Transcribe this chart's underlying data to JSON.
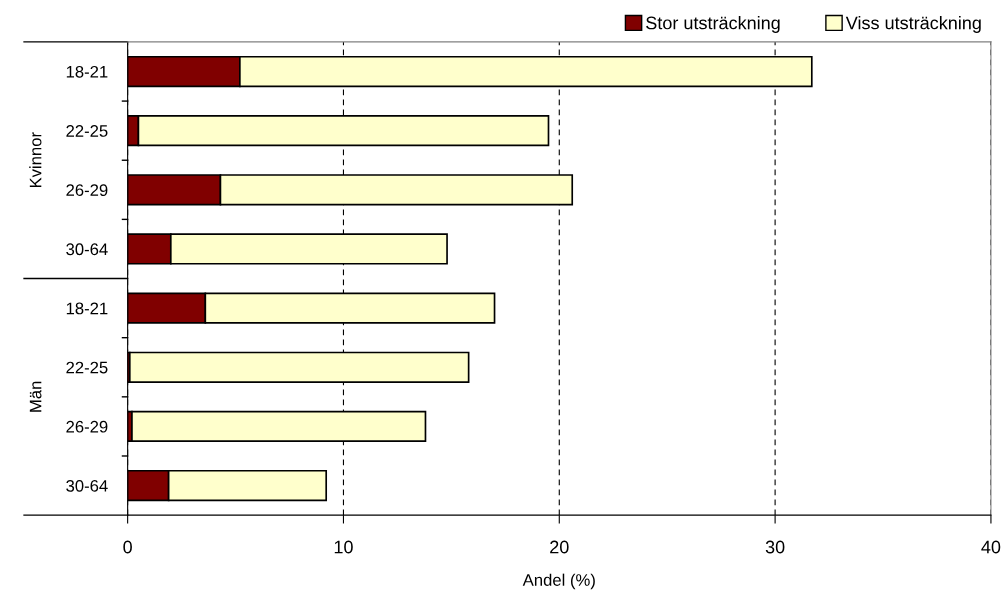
{
  "chart_data": {
    "type": "bar",
    "orientation": "horizontal",
    "stacked": true,
    "categories": [
      "18-21",
      "22-25",
      "26-29",
      "30-64",
      "18-21",
      "22-25",
      "26-29",
      "30-64"
    ],
    "series": [
      {
        "name": "Stor utsträckning",
        "color": "#800000",
        "values": [
          5.2,
          0.5,
          4.3,
          2.0,
          3.6,
          0.1,
          0.2,
          1.9
        ]
      },
      {
        "name": "Viss utsträckning",
        "color": "#ffffcc",
        "values": [
          26.5,
          19.0,
          16.3,
          12.8,
          13.4,
          15.7,
          13.6,
          7.3
        ]
      }
    ],
    "xlim": [
      0,
      40
    ],
    "xticks": [
      0,
      10,
      20,
      30,
      40
    ],
    "xlabel": "Andel (%)",
    "grid": "x",
    "legend": "top right",
    "annotations": [
      "Kvinnor",
      "Män"
    ]
  }
}
